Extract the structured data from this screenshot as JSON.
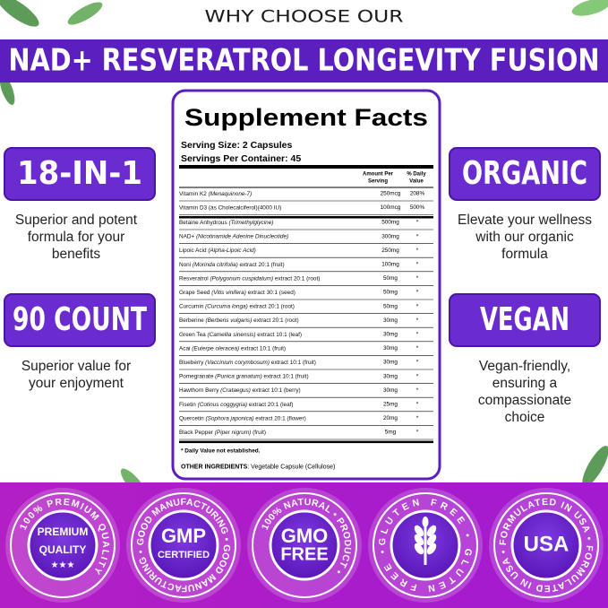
{
  "header": {
    "kicker": "WHY CHOOSE OUR",
    "title": "NAD+ RESVERATROL LONGEVITY FUSION"
  },
  "features": {
    "left": [
      {
        "badge": "18-IN-1",
        "lines": [
          "Superior and potent",
          "formula for your",
          "benefits"
        ]
      },
      {
        "badge": "90 COUNT",
        "lines": [
          "Superior value for",
          "your enjoyment"
        ]
      }
    ],
    "right": [
      {
        "badge": "ORGANIC",
        "lines": [
          "Elevate your wellness",
          "with our organic",
          "formula"
        ]
      },
      {
        "badge": "VEGAN",
        "lines": [
          "Vegan-friendly,",
          "ensuring a",
          "compassionate",
          "choice"
        ]
      }
    ]
  },
  "facts": {
    "title": "Supplement Facts",
    "serving_size": "Serving Size: 2 Capsules",
    "servings": "Servings Per Container: 45",
    "amount_header": [
      "Amount Per",
      "Serving"
    ],
    "dv_header": [
      "% Daily",
      "Value"
    ],
    "vitamins": [
      {
        "name": "Vitamin K2 ",
        "latin": "(Menaquinone-7)",
        "amount": "250mcg",
        "dv": "208%"
      },
      {
        "name": "Vitamin D3 (as Cholecalciferol)(4000 IU)",
        "amount": "100mcg",
        "dv": "500%"
      }
    ],
    "blend": [
      {
        "name": "Betaine Anhydrous ",
        "latin": "(Trimethylglycine)",
        "amount": "500mg",
        "dv": "*"
      },
      {
        "name": "NAD+ ",
        "latin": "(Nicotinamide Adenine Dinucleotide)",
        "amount": "300mg",
        "dv": "*"
      },
      {
        "name": "Lipoic Acid ",
        "latin": "(Alpha-Lipoic Acid)",
        "amount": "250mg",
        "dv": "*"
      },
      {
        "name": "Noni ",
        "latin": "(Morinda citrifolia)",
        "rest": " extract 20:1 (fruit)",
        "amount": "100mg",
        "dv": "*"
      },
      {
        "name": "Resveratrol ",
        "latin": "(Polygonum cuspidatum)",
        "rest": " extract 20:1 (root)",
        "amount": "50mg",
        "dv": "*"
      },
      {
        "name": "Grape Seed ",
        "latin": "(Vitis vinifera)",
        "rest": " extract 30:1 (seed)",
        "amount": "50mg",
        "dv": "*"
      },
      {
        "name": "Curcumin ",
        "latin": "(Curcuma longa)",
        "rest": " extract 20:1 (root)",
        "amount": "50mg",
        "dv": "*"
      },
      {
        "name": "Berberine ",
        "latin": "(Berberis vulgaris)",
        "rest": " extract 20:1 (root)",
        "amount": "30mg",
        "dv": "*"
      },
      {
        "name": "Green Tea ",
        "latin": "(Camellia sinensis)",
        "rest": " extract 10:1 (leaf)",
        "amount": "30mg",
        "dv": "*"
      },
      {
        "name": "Acai ",
        "latin": "(Euterpe oleracea)",
        "rest": " extract 10:1 (fruit)",
        "amount": "30mg",
        "dv": "*"
      },
      {
        "name": "Blueberry ",
        "latin": "(Vaccinium corymbosum)",
        "rest": " extract 10:1 (fruit)",
        "amount": "30mg",
        "dv": "*"
      },
      {
        "name": "Pomegranate ",
        "latin": "(Punica granatum)",
        "rest": " extract 10:1 (fruit)",
        "amount": "30mg",
        "dv": "*"
      },
      {
        "name": "Hawthorn Berry ",
        "latin": "(Crataegus)",
        "rest": " extract 10:1 (berry)",
        "amount": "30mg",
        "dv": "*"
      },
      {
        "name": "Fisetin ",
        "latin": "(Cotinus coggygria)",
        "rest": " extract 20:1 (leaf)",
        "amount": "25mg",
        "dv": "*"
      },
      {
        "name": "Quercetin ",
        "latin": "(Sophora japonica)",
        "rest": " extract 20:1 (flower)",
        "amount": "20mg",
        "dv": "*"
      },
      {
        "name": "Black Pepper ",
        "latin": "(Piper nigrum)",
        "rest": " (fruit)",
        "amount": "5mg",
        "dv": "*"
      }
    ],
    "footnote": "* Daily Value not established.",
    "other_label": "OTHER INGREDIENTS",
    "other_text": ": Vegetable Capsule (Cellulose)"
  },
  "seals": [
    {
      "ring": "100% PREMIUM QUALITY",
      "center": [
        "PREMIUM",
        "QUALITY"
      ],
      "stars": "★★★"
    },
    {
      "ring": "GOOD MANUFACTURING • GOOD MANUFACTURING •",
      "center": [
        "GMP",
        "CERTIFIED"
      ]
    },
    {
      "ring": "100% NATURAL • PRODUCT •",
      "center": [
        "GMO",
        "FREE"
      ]
    },
    {
      "ring": "GLUTEN FREE • GLUTEN FREE •"
    },
    {
      "ring": "FORMULATED IN USA • FORMULATED IN USA •",
      "center": [
        "USA"
      ]
    }
  ]
}
